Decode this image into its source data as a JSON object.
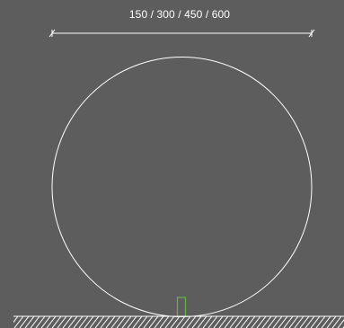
{
  "dimension": {
    "label": "150 / 300 / 450 / 600"
  },
  "colors": {
    "background": "#5d5d5d",
    "line": "#ffffff",
    "marker": "#6ab04c"
  }
}
